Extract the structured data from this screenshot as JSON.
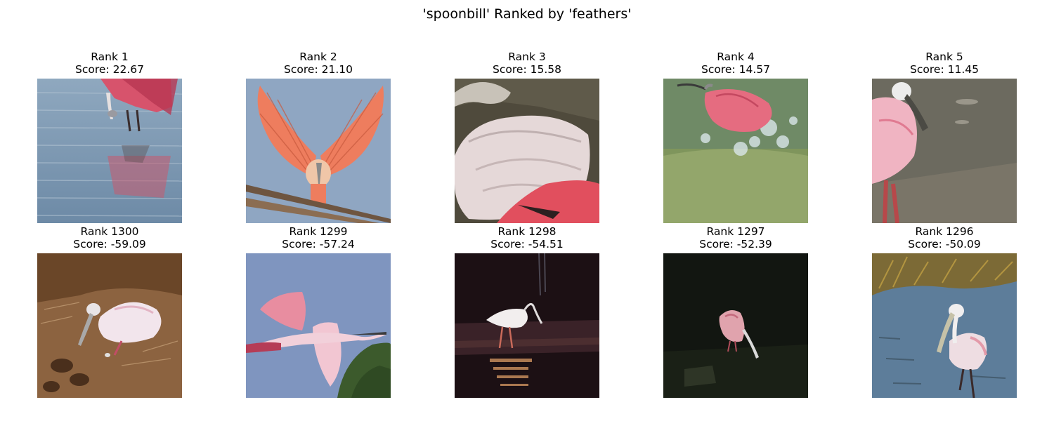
{
  "figure": {
    "title": "'spoonbill' Ranked by 'feathers'"
  },
  "top_row": [
    {
      "rank": "Rank 1",
      "score": "Score: 22.67"
    },
    {
      "rank": "Rank 2",
      "score": "Score: 21.10"
    },
    {
      "rank": "Rank 3",
      "score": "Score: 15.58"
    },
    {
      "rank": "Rank 4",
      "score": "Score: 14.57"
    },
    {
      "rank": "Rank 5",
      "score": "Score: 11.45"
    }
  ],
  "bottom_row": [
    {
      "rank": "Rank 1300",
      "score": "Score: -59.09"
    },
    {
      "rank": "Rank 1299",
      "score": "Score: -57.24"
    },
    {
      "rank": "Rank 1298",
      "score": "Score: -54.51"
    },
    {
      "rank": "Rank 1297",
      "score": "Score: -52.39"
    },
    {
      "rank": "Rank 1296",
      "score": "Score: -50.09"
    }
  ],
  "colors": {
    "spoonbill_pink": "#e8798f",
    "water_blue": "#7f9cb8",
    "sky_blue": "#8aa6c8"
  }
}
